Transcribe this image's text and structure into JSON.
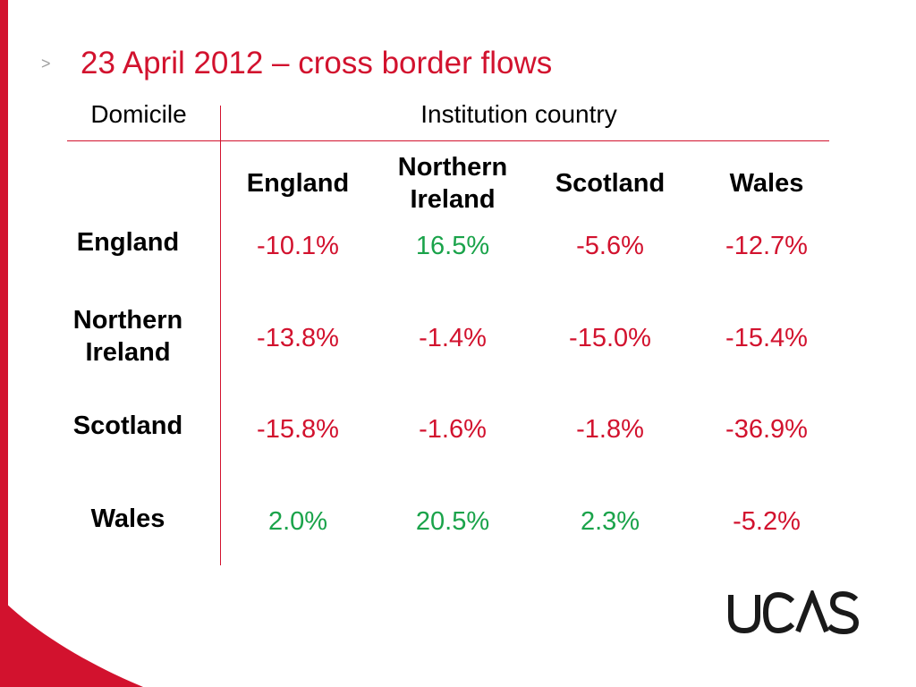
{
  "slide": {
    "bullet": ">",
    "title": "23 April 2012 – cross border flows",
    "brand_color": "#d2122e",
    "positive_color": "#1aa34a"
  },
  "table": {
    "domicile_header": "Domicile",
    "institution_header": "Institution country",
    "columns": [
      "England",
      "Northern Ireland",
      "Scotland",
      "Wales"
    ],
    "rows": [
      {
        "label": "England",
        "values": [
          "-10.1%",
          "16.5%",
          "-5.6%",
          "-12.7%"
        ]
      },
      {
        "label": "Northern Ireland",
        "values": [
          "-13.8%",
          "-1.4%",
          "-15.0%",
          "-15.4%"
        ]
      },
      {
        "label": "Scotland",
        "values": [
          "-15.8%",
          "-1.6%",
          "-1.8%",
          "-36.9%"
        ]
      },
      {
        "label": "Wales",
        "values": [
          "2.0%",
          "20.5%",
          "2.3%",
          "-5.2%"
        ]
      }
    ]
  },
  "logo": {
    "text": "UCAS"
  }
}
